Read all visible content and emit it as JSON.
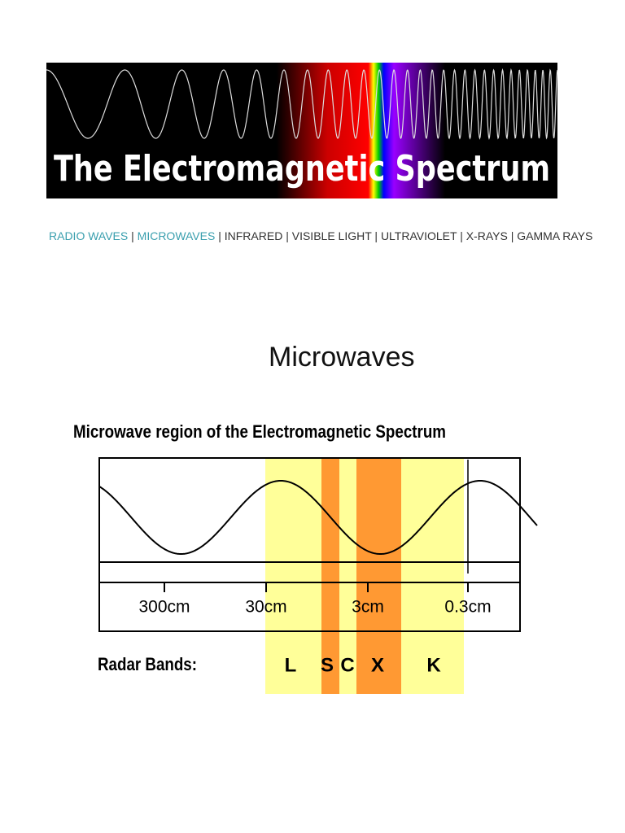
{
  "header": {
    "title": "The Electromagnetic Spectrum"
  },
  "nav": {
    "separator": "|",
    "links": [
      "RADIO WAVES",
      "MICROWAVES",
      "INFRARED",
      "VISIBLE LIGHT",
      "ULTRAVIOLET",
      "X-RAYS",
      "GAMMA RAYS"
    ]
  },
  "page": {
    "heading": "Microwaves"
  },
  "diagram": {
    "title": "Microwave region of the Electromagnetic Spectrum",
    "scale": [
      "300cm",
      "30cm",
      "3cm",
      "0.3cm"
    ],
    "bands_label": "Radar Bands:",
    "bands": [
      "L",
      "S",
      "C",
      "X",
      "K"
    ]
  }
}
